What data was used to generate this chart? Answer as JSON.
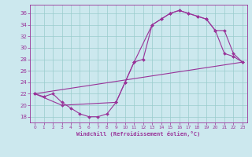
{
  "background_color": "#cce8ee",
  "grid_color": "#99cccc",
  "line_color": "#993399",
  "xlabel": "Windchill (Refroidissement éolien,°C)",
  "xlim": [
    -0.5,
    23.5
  ],
  "ylim": [
    17.0,
    37.5
  ],
  "yticks": [
    18,
    20,
    22,
    24,
    26,
    28,
    30,
    32,
    34,
    36
  ],
  "xticks": [
    0,
    1,
    2,
    3,
    4,
    5,
    6,
    7,
    8,
    9,
    10,
    11,
    12,
    13,
    14,
    15,
    16,
    17,
    18,
    19,
    20,
    21,
    22,
    23
  ],
  "curve1_x": [
    0,
    1,
    2,
    3,
    4,
    5,
    6,
    7,
    8,
    9,
    10,
    11,
    12,
    13,
    14,
    15,
    16,
    17,
    18,
    19,
    20,
    21,
    22,
    23
  ],
  "curve1_y": [
    22,
    21.5,
    22,
    20.5,
    19.5,
    18.5,
    18,
    18,
    18.5,
    20.5,
    24,
    27.5,
    28,
    34,
    35,
    36,
    36.5,
    36,
    35.5,
    35,
    33,
    29,
    28.5,
    27.5
  ],
  "curve2_x": [
    0,
    23
  ],
  "curve2_y": [
    22,
    27.5
  ],
  "curve3_x": [
    0,
    3,
    9,
    10,
    11,
    13,
    14,
    15,
    16,
    17,
    18,
    19,
    20,
    21,
    22,
    23
  ],
  "curve3_y": [
    22,
    20,
    20.5,
    24,
    27.5,
    34,
    35,
    36,
    36.5,
    36,
    35.5,
    35,
    33,
    33,
    29,
    27.5
  ]
}
